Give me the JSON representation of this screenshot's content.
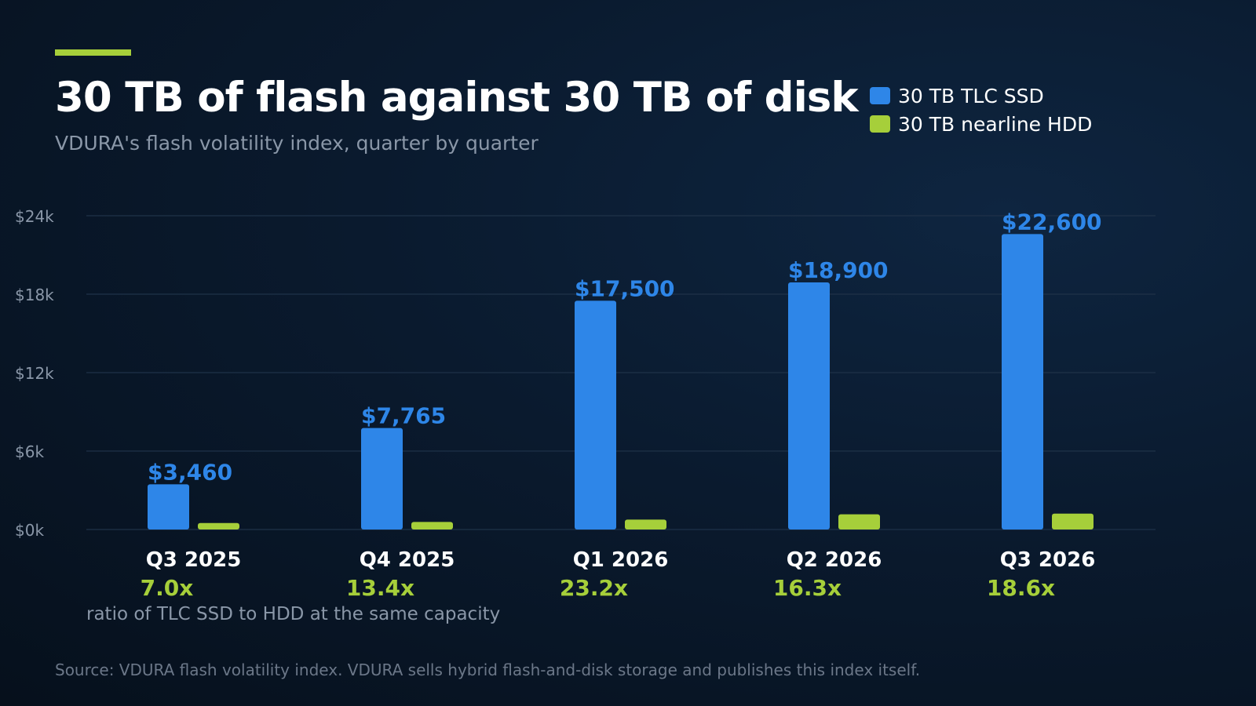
{
  "title": "30 TB of flash against 30 TB of disk",
  "subtitle": "VDURA's flash volatility index, quarter by quarter",
  "note": "ratio of TLC SSD to HDD at the same capacity",
  "source": "Source: VDURA flash volatility index. VDURA sells hybrid flash-and-disk storage and publishes this index itself.",
  "colors": {
    "ssd": "#2e86e8",
    "hdd": "#a6cf3a",
    "accent": "#a6cf3a",
    "grid": "#1f3248",
    "axis_text": "#8a97a8"
  },
  "chart_data": {
    "type": "bar",
    "categories": [
      "Q3 2025",
      "Q4 2025",
      "Q1 2026",
      "Q2 2026",
      "Q3 2026"
    ],
    "series": [
      {
        "name": "30 TB TLC SSD",
        "values": [
          3460,
          7765,
          17500,
          18900,
          22600
        ],
        "labels": [
          "$3,460",
          "$7,765",
          "$17,500",
          "$18,900",
          "$22,600"
        ]
      },
      {
        "name": "30 TB nearline HDD",
        "values": [
          494,
          579,
          754,
          1160,
          1215
        ]
      }
    ],
    "ratios": [
      "7.0x",
      "13.4x",
      "23.2x",
      "16.3x",
      "18.6x"
    ],
    "yticks": [
      0,
      6000,
      12000,
      18000,
      24000
    ],
    "ytick_labels": [
      "$0k",
      "$6k",
      "$12k",
      "$18k",
      "$24k"
    ],
    "ylim": [
      0,
      24000
    ],
    "grid": true,
    "legend_position": "top-right"
  }
}
